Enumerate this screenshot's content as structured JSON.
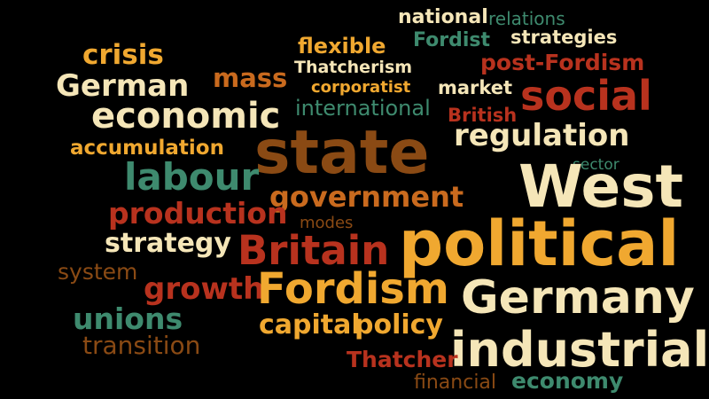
{
  "colors": {
    "background": "#000000",
    "cream": "#f5e6b8",
    "orange": "#f0a830",
    "dark_orange": "#c96a1e",
    "red": "#b8321e",
    "teal": "#3e8a6e",
    "brown": "#8a4a14"
  },
  "words": [
    {
      "id": "national",
      "text": "national",
      "color": "cream"
    },
    {
      "id": "relations",
      "text": "relations",
      "color": "teal"
    },
    {
      "id": "flexible",
      "text": "flexible",
      "color": "orange"
    },
    {
      "id": "fordist",
      "text": "Fordist",
      "color": "teal"
    },
    {
      "id": "strategies",
      "text": "strategies",
      "color": "cream"
    },
    {
      "id": "crisis",
      "text": "crisis",
      "color": "orange"
    },
    {
      "id": "thatcherism",
      "text": "Thatcherism",
      "color": "cream"
    },
    {
      "id": "post-fordism",
      "text": "post-Fordism",
      "color": "red"
    },
    {
      "id": "german",
      "text": "German",
      "color": "cream"
    },
    {
      "id": "mass",
      "text": "mass",
      "color": "dark_orange"
    },
    {
      "id": "corporatist",
      "text": "corporatist",
      "color": "orange"
    },
    {
      "id": "market",
      "text": "market",
      "color": "cream"
    },
    {
      "id": "social",
      "text": "social",
      "color": "red"
    },
    {
      "id": "economic",
      "text": "economic",
      "color": "cream"
    },
    {
      "id": "international",
      "text": "international",
      "color": "teal"
    },
    {
      "id": "british",
      "text": "British",
      "color": "red"
    },
    {
      "id": "accumulation",
      "text": "accumulation",
      "color": "orange"
    },
    {
      "id": "state",
      "text": "state",
      "color": "brown"
    },
    {
      "id": "regulation",
      "text": "regulation",
      "color": "cream"
    },
    {
      "id": "sector",
      "text": "sector",
      "color": "teal"
    },
    {
      "id": "labour",
      "text": "labour",
      "color": "teal"
    },
    {
      "id": "west",
      "text": "West",
      "color": "cream"
    },
    {
      "id": "government",
      "text": "government",
      "color": "dark_orange"
    },
    {
      "id": "production",
      "text": "production",
      "color": "red"
    },
    {
      "id": "modes",
      "text": "modes",
      "color": "brown"
    },
    {
      "id": "strategy",
      "text": "strategy",
      "color": "cream"
    },
    {
      "id": "britain",
      "text": "Britain",
      "color": "red"
    },
    {
      "id": "political",
      "text": "political",
      "color": "orange"
    },
    {
      "id": "system",
      "text": "system",
      "color": "brown"
    },
    {
      "id": "growth",
      "text": "growth",
      "color": "red"
    },
    {
      "id": "fordism",
      "text": "Fordism",
      "color": "orange"
    },
    {
      "id": "germany",
      "text": "Germany",
      "color": "cream"
    },
    {
      "id": "unions",
      "text": "unions",
      "color": "teal"
    },
    {
      "id": "capital",
      "text": "capital",
      "color": "orange"
    },
    {
      "id": "policy",
      "text": "policy",
      "color": "orange"
    },
    {
      "id": "transition",
      "text": "transition",
      "color": "brown"
    },
    {
      "id": "industrial",
      "text": "industrial",
      "color": "cream"
    },
    {
      "id": "thatcher",
      "text": "Thatcher",
      "color": "red"
    },
    {
      "id": "financial",
      "text": "financial",
      "color": "brown"
    },
    {
      "id": "economy",
      "text": "economy",
      "color": "teal"
    }
  ]
}
